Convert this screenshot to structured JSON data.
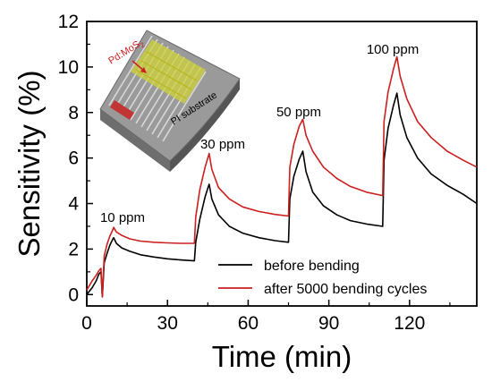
{
  "chart_data": {
    "type": "line",
    "xlabel": "Time (min)",
    "ylabel": "Sensitivity (%)",
    "xlim": [
      0,
      145
    ],
    "ylim": [
      -0.5,
      12
    ],
    "xticks": [
      0,
      30,
      60,
      90,
      120
    ],
    "yticks": [
      0,
      2,
      4,
      6,
      8,
      10,
      12
    ],
    "grid": false,
    "legend_position": "bottom-right",
    "annotations": [
      "10 ppm",
      "30 ppm",
      "50 ppm",
      "100 ppm"
    ],
    "series": [
      {
        "name": "before bending",
        "color": "#000000",
        "points": [
          [
            0,
            0
          ],
          [
            2,
            0.3
          ],
          [
            3.5,
            0.6
          ],
          [
            4.5,
            0.9
          ],
          [
            5.3,
            1.0
          ],
          [
            5.8,
            -0.1
          ],
          [
            6.5,
            1.4
          ],
          [
            7.5,
            1.8
          ],
          [
            8.5,
            2.15
          ],
          [
            9.5,
            2.4
          ],
          [
            10,
            2.5
          ],
          [
            11,
            2.25
          ],
          [
            13,
            2.05
          ],
          [
            16,
            1.9
          ],
          [
            20,
            1.75
          ],
          [
            25,
            1.65
          ],
          [
            30,
            1.57
          ],
          [
            35,
            1.52
          ],
          [
            40,
            1.48
          ],
          [
            40.5,
            2.3
          ],
          [
            42,
            3.3
          ],
          [
            44,
            4.3
          ],
          [
            45.5,
            4.85
          ],
          [
            46.5,
            4.2
          ],
          [
            49,
            3.5
          ],
          [
            53,
            3.0
          ],
          [
            58,
            2.7
          ],
          [
            64,
            2.5
          ],
          [
            70,
            2.37
          ],
          [
            75,
            2.3
          ],
          [
            75.5,
            4.2
          ],
          [
            77,
            5.2
          ],
          [
            79,
            5.95
          ],
          [
            80.3,
            6.3
          ],
          [
            81.5,
            5.4
          ],
          [
            84,
            4.5
          ],
          [
            88,
            3.9
          ],
          [
            93,
            3.5
          ],
          [
            98,
            3.25
          ],
          [
            104,
            3.1
          ],
          [
            110,
            3.0
          ],
          [
            110.5,
            5.9
          ],
          [
            112,
            7.3
          ],
          [
            114,
            8.3
          ],
          [
            115.3,
            8.85
          ],
          [
            116.5,
            7.9
          ],
          [
            119,
            6.9
          ],
          [
            123,
            6.0
          ],
          [
            128,
            5.3
          ],
          [
            134,
            4.8
          ],
          [
            140,
            4.4
          ],
          [
            145,
            4.0
          ]
        ]
      },
      {
        "name": "after 5000 bending cycles",
        "color": "#cc1f1f",
        "points": [
          [
            0,
            0.2
          ],
          [
            2,
            0.6
          ],
          [
            3.5,
            0.85
          ],
          [
            4.5,
            1.05
          ],
          [
            5.3,
            1.15
          ],
          [
            5.8,
            -0.1
          ],
          [
            6.5,
            1.7
          ],
          [
            7.5,
            2.2
          ],
          [
            8.5,
            2.55
          ],
          [
            9.5,
            2.8
          ],
          [
            10,
            2.95
          ],
          [
            11,
            2.75
          ],
          [
            13,
            2.6
          ],
          [
            16,
            2.45
          ],
          [
            20,
            2.35
          ],
          [
            25,
            2.3
          ],
          [
            30,
            2.27
          ],
          [
            35,
            2.25
          ],
          [
            40,
            2.25
          ],
          [
            40.5,
            3.4
          ],
          [
            42,
            4.6
          ],
          [
            44,
            5.6
          ],
          [
            45.5,
            6.2
          ],
          [
            46.5,
            5.5
          ],
          [
            49,
            4.7
          ],
          [
            53,
            4.2
          ],
          [
            58,
            3.85
          ],
          [
            64,
            3.65
          ],
          [
            70,
            3.52
          ],
          [
            75,
            3.45
          ],
          [
            75.5,
            5.6
          ],
          [
            77,
            6.6
          ],
          [
            79,
            7.4
          ],
          [
            80.3,
            7.7
          ],
          [
            81.5,
            7.0
          ],
          [
            84,
            6.3
          ],
          [
            88,
            5.6
          ],
          [
            93,
            5.1
          ],
          [
            98,
            4.75
          ],
          [
            104,
            4.5
          ],
          [
            110,
            4.35
          ],
          [
            110.5,
            7.6
          ],
          [
            112,
            8.9
          ],
          [
            114,
            9.9
          ],
          [
            115.3,
            10.45
          ],
          [
            116.5,
            9.6
          ],
          [
            119,
            8.6
          ],
          [
            123,
            7.6
          ],
          [
            128,
            6.9
          ],
          [
            134,
            6.3
          ],
          [
            140,
            5.9
          ],
          [
            145,
            5.6
          ]
        ]
      }
    ]
  },
  "inset": {
    "label_pd": "Pd:MoS",
    "label_sub": "2",
    "label_substrate": "PI substrate"
  }
}
